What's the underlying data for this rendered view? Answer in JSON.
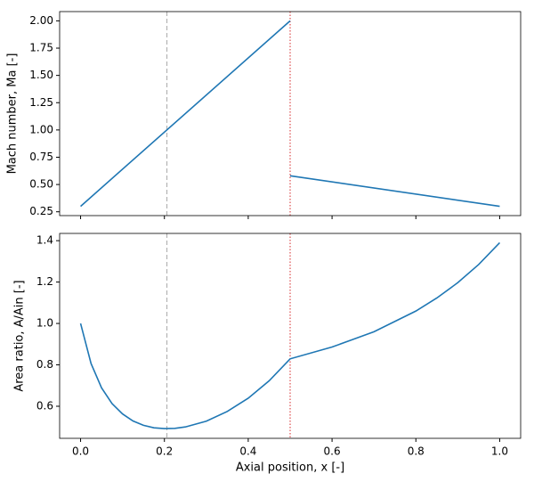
{
  "chart_data": [
    {
      "type": "line",
      "ylabel": "Mach number, Ma [-]",
      "xlim": [
        -0.05,
        1.05
      ],
      "ylim": [
        0.215,
        2.085
      ],
      "xticks": [
        {
          "value": 0,
          "label": "0.0"
        },
        0.2,
        0.4,
        0.6,
        0.8,
        {
          "value": 1,
          "label": "1.0"
        }
      ],
      "yticks": [
        0.25,
        {
          "value": 0.5,
          "label": "0.50"
        },
        0.75,
        {
          "value": 1,
          "label": "1.00"
        },
        1.25,
        {
          "value": 1.5,
          "label": "1.50"
        },
        1.75,
        {
          "value": 2,
          "label": "2.00"
        }
      ],
      "show_xtick_labels": false,
      "vlines": [
        {
          "x": 0.206,
          "color": "#aaaaaa",
          "style": "dashed"
        },
        {
          "x": 0.5,
          "color": "#d62728",
          "style": "dotted"
        }
      ],
      "series": [
        {
          "color": "#1f77b4",
          "x": [
            0,
            0.5,
            0.5,
            0.5,
            1.0
          ],
          "values": [
            0.3,
            2.0,
            null,
            0.58,
            0.3
          ]
        }
      ]
    },
    {
      "type": "line",
      "ylabel": "Area ratio, A/Ain [-]",
      "xlabel": "Axial position, x [-]",
      "xlim": [
        -0.05,
        1.05
      ],
      "ylim": [
        0.445,
        1.435
      ],
      "xticks": [
        {
          "value": 0,
          "label": "0.0"
        },
        0.2,
        0.4,
        0.6,
        0.8,
        {
          "value": 1,
          "label": "1.0"
        }
      ],
      "yticks": [
        0.6,
        0.8,
        {
          "value": 1,
          "label": "1.0"
        },
        1.2,
        1.4
      ],
      "show_xtick_labels": true,
      "vlines": [
        {
          "x": 0.206,
          "color": "#aaaaaa",
          "style": "dashed"
        },
        {
          "x": 0.5,
          "color": "#d62728",
          "style": "dotted"
        }
      ],
      "series": [
        {
          "color": "#1f77b4",
          "x": [
            0,
            0.025,
            0.05,
            0.075,
            0.1,
            0.125,
            0.15,
            0.175,
            0.2,
            0.225,
            0.25,
            0.3,
            0.35,
            0.4,
            0.45,
            0.5,
            0.6,
            0.7,
            0.8,
            0.85,
            0.9,
            0.95,
            1.0
          ],
          "values": [
            1.0,
            0.806,
            0.689,
            0.613,
            0.563,
            0.529,
            0.508,
            0.496,
            0.492,
            0.493,
            0.5,
            0.528,
            0.575,
            0.639,
            0.723,
            0.829,
            0.886,
            0.96,
            1.06,
            1.123,
            1.197,
            1.285,
            1.39
          ]
        }
      ]
    }
  ]
}
